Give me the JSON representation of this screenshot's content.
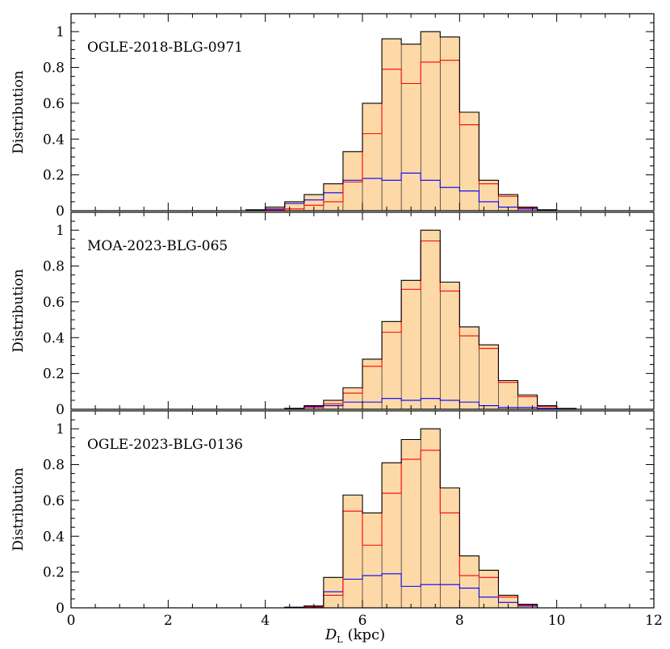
{
  "chart_data": {
    "type": "histogram",
    "xlabel": "D_L (kpc)",
    "xlabel_symbol": "D",
    "xlabel_subscript": "L",
    "xlabel_unit": "(kpc)",
    "xlim": [
      0,
      12
    ],
    "xticks": [
      0,
      2,
      4,
      6,
      8,
      10,
      12
    ],
    "ylim": [
      0,
      1.1
    ],
    "yticks": [
      0,
      0.2,
      0.4,
      0.6,
      0.8,
      1
    ],
    "ytick_labels": [
      "0",
      "0.2",
      "0.4",
      "0.6",
      "0.8",
      "1"
    ],
    "ylabel": "Distribution",
    "bin_width": 0.4,
    "colors": {
      "total": "#000000",
      "fill": "#fdd9a8",
      "disk": "#ff0000",
      "bulge": "#0000ff"
    },
    "panels": [
      {
        "label": "OGLE-2018-BLG-0971",
        "bin_starts": [
          3.6,
          4.0,
          4.4,
          4.8,
          5.2,
          5.6,
          6.0,
          6.4,
          6.8,
          7.2,
          7.6,
          8.0,
          8.4,
          8.8,
          9.2,
          9.6,
          10.0
        ],
        "series": [
          {
            "key": "total",
            "values": [
              0.005,
              0.02,
              0.05,
              0.09,
              0.15,
              0.33,
              0.6,
              0.96,
              0.93,
              1.0,
              0.97,
              0.55,
              0.17,
              0.09,
              0.02,
              0.005,
              0.0
            ]
          },
          {
            "key": "disk",
            "values": [
              0.0,
              0.005,
              0.01,
              0.03,
              0.05,
              0.16,
              0.43,
              0.79,
              0.71,
              0.83,
              0.84,
              0.48,
              0.15,
              0.08,
              0.015,
              0.003,
              0.0
            ]
          },
          {
            "key": "bulge",
            "values": [
              0.005,
              0.01,
              0.04,
              0.06,
              0.1,
              0.17,
              0.18,
              0.17,
              0.21,
              0.17,
              0.13,
              0.11,
              0.05,
              0.02,
              0.01,
              0.005,
              0.0
            ]
          }
        ]
      },
      {
        "label": "MOA-2023-BLG-065",
        "bin_starts": [
          4.4,
          4.8,
          5.2,
          5.6,
          6.0,
          6.4,
          6.8,
          7.2,
          7.6,
          8.0,
          8.4,
          8.8,
          9.2,
          9.6,
          10.0
        ],
        "series": [
          {
            "key": "total",
            "values": [
              0.005,
              0.02,
              0.05,
              0.12,
              0.28,
              0.49,
              0.72,
              1.0,
              0.71,
              0.46,
              0.36,
              0.16,
              0.08,
              0.02,
              0.005
            ]
          },
          {
            "key": "disk",
            "values": [
              0.0,
              0.01,
              0.03,
              0.09,
              0.24,
              0.43,
              0.67,
              0.94,
              0.66,
              0.41,
              0.34,
              0.15,
              0.07,
              0.015,
              0.003
            ]
          },
          {
            "key": "bulge",
            "values": [
              0.005,
              0.015,
              0.02,
              0.04,
              0.04,
              0.06,
              0.05,
              0.06,
              0.05,
              0.04,
              0.02,
              0.01,
              0.01,
              0.005,
              0.0
            ]
          }
        ]
      },
      {
        "label": "OGLE-2023-BLG-0136",
        "bin_starts": [
          4.4,
          4.8,
          5.2,
          5.6,
          6.0,
          6.4,
          6.8,
          7.2,
          7.6,
          8.0,
          8.4,
          8.8,
          9.2,
          9.6
        ],
        "series": [
          {
            "key": "total",
            "values": [
              0.003,
              0.01,
              0.17,
              0.63,
              0.53,
              0.81,
              0.94,
              1.0,
              0.67,
              0.29,
              0.21,
              0.07,
              0.02,
              0.0
            ]
          },
          {
            "key": "disk",
            "values": [
              0.0,
              0.005,
              0.07,
              0.54,
              0.35,
              0.64,
              0.83,
              0.88,
              0.53,
              0.18,
              0.17,
              0.06,
              0.015,
              0.0
            ]
          },
          {
            "key": "bulge",
            "values": [
              0.003,
              0.01,
              0.09,
              0.16,
              0.18,
              0.19,
              0.12,
              0.13,
              0.13,
              0.11,
              0.06,
              0.03,
              0.01,
              0.0
            ]
          }
        ]
      }
    ]
  }
}
